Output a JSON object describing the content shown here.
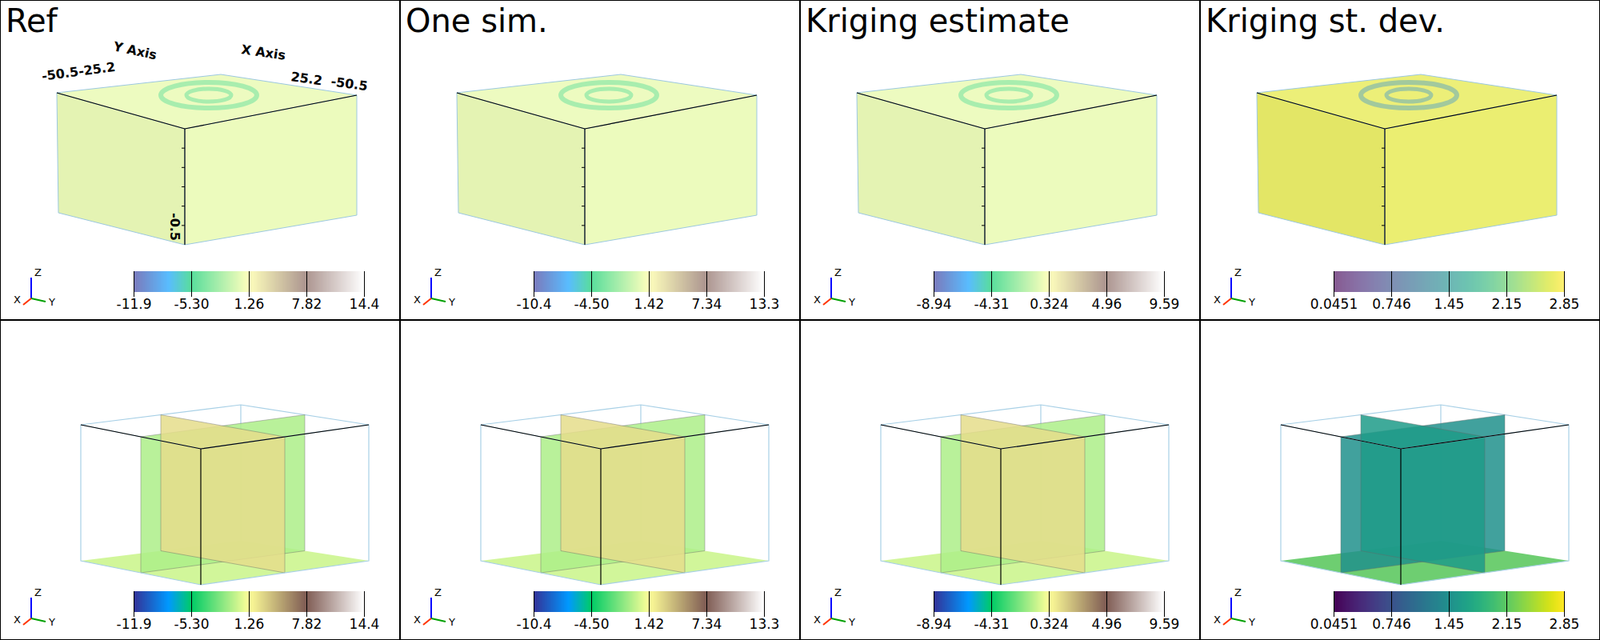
{
  "chart_data": [
    {
      "type": "volume",
      "title": "Ref",
      "color": "terrain",
      "colorbar": {
        "range": [
          -11.9,
          14.4
        ],
        "ticks": [
          -11.9,
          {
            "value": -5.3,
            "label": "-5.30"
          },
          1.26,
          7.82,
          14.4
        ]
      },
      "axis_texts": {
        "x_label": "X Axis",
        "y_label": "Y Axis",
        "labels": [
          "-50.5",
          "-25.2",
          "25.2",
          "-50.5",
          "-0.5"
        ]
      }
    },
    {
      "type": "volume",
      "title": "One sim.",
      "color": "terrain",
      "colorbar": {
        "range": [
          -10.4,
          13.3
        ],
        "ticks": [
          -10.4,
          {
            "value": -4.5,
            "label": "-4.50"
          },
          1.42,
          7.34,
          13.3
        ]
      }
    },
    {
      "type": "volume",
      "title": "Kriging estimate",
      "color": "terrain",
      "colorbar": {
        "range": [
          -8.94,
          9.59
        ],
        "ticks": [
          -8.94,
          -4.31,
          0.324,
          4.96,
          9.59
        ]
      }
    },
    {
      "type": "volume",
      "title": "Kriging st. dev.",
      "color": "viridis",
      "colorbar": {
        "range": [
          0.0451,
          2.85
        ],
        "ticks": [
          0.0451,
          0.746,
          1.45,
          2.15,
          2.85
        ]
      }
    },
    {
      "type": "slices",
      "color": "terrain",
      "colorbar": {
        "range": [
          -11.9,
          14.4
        ],
        "ticks": [
          -11.9,
          {
            "value": -5.3,
            "label": "-5.30"
          },
          1.26,
          7.82,
          14.4
        ]
      }
    },
    {
      "type": "slices",
      "color": "terrain",
      "colorbar": {
        "range": [
          -10.4,
          13.3
        ],
        "ticks": [
          -10.4,
          {
            "value": -4.5,
            "label": "-4.50"
          },
          1.42,
          7.34,
          13.3
        ]
      }
    },
    {
      "type": "slices",
      "color": "terrain",
      "colorbar": {
        "range": [
          -8.94,
          9.59
        ],
        "ticks": [
          -8.94,
          -4.31,
          0.324,
          4.96,
          9.59
        ]
      }
    },
    {
      "type": "slices",
      "color": "viridis",
      "colorbar": {
        "range": [
          0.0451,
          2.85
        ],
        "ticks": [
          0.0451,
          0.746,
          1.45,
          2.15,
          2.85
        ]
      }
    }
  ],
  "triad": [
    "X",
    "Y",
    "Z"
  ]
}
